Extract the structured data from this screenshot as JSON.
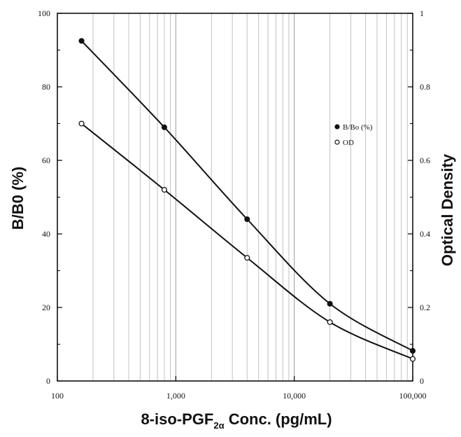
{
  "chart_data": {
    "type": "line",
    "x_scale": "log",
    "xlim": [
      100,
      100000
    ],
    "ylim": [
      0,
      100
    ],
    "y2lim": [
      0,
      1
    ],
    "x_ticks": [
      "100",
      "1,000",
      "10,000",
      "100,000"
    ],
    "y_ticks": [
      "0",
      "20",
      "40",
      "60",
      "80",
      "100"
    ],
    "y2_ticks": [
      "0",
      "0.2",
      "0.4",
      "0.6",
      "0.8",
      "1"
    ],
    "xlabel": {
      "prefix": "8-iso-PGF",
      "sub": "2α",
      "suffix": " Conc. (pg/mL)"
    },
    "ylabel": "B/B0 (%)",
    "y2label": "Optical Density",
    "grid": "vertical log gridlines",
    "legend_position": "right-middle",
    "series": [
      {
        "name": "B/Bo (%)",
        "axis": "left",
        "marker": "filled-circle",
        "x": [
          160,
          800,
          4000,
          20000,
          100000
        ],
        "y": [
          92.5,
          69,
          44,
          21,
          8.2
        ]
      },
      {
        "name": "OD",
        "axis": "right",
        "marker": "open-circle",
        "x": [
          160,
          800,
          4000,
          20000,
          100000
        ],
        "y": [
          0.7,
          0.52,
          0.335,
          0.16,
          0.06
        ]
      }
    ]
  }
}
